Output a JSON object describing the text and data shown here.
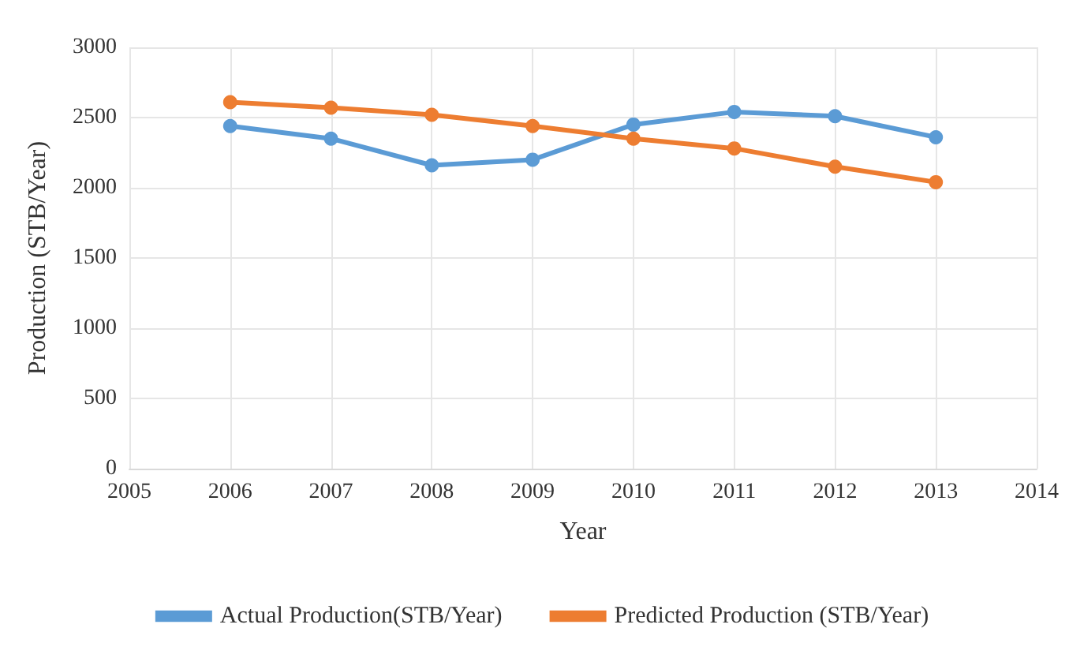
{
  "chart_data": {
    "type": "line",
    "xlabel": "Year",
    "ylabel": "Production (STB/Year)",
    "x": [
      2006,
      2007,
      2008,
      2009,
      2010,
      2011,
      2012,
      2013
    ],
    "series": [
      {
        "name": "Actual Production(STB/Year)",
        "color": "#5b9bd5",
        "values": [
          2440,
          2350,
          2160,
          2200,
          2450,
          2540,
          2510,
          2360
        ]
      },
      {
        "name": "Predicted Production (STB/Year)",
        "color": "#ed7d31",
        "values": [
          2610,
          2570,
          2520,
          2440,
          2350,
          2280,
          2150,
          2040
        ]
      }
    ],
    "xlim": [
      2005,
      2014
    ],
    "xticks": [
      2005,
      2006,
      2007,
      2008,
      2009,
      2010,
      2011,
      2012,
      2013,
      2014
    ],
    "ylim": [
      0,
      3000
    ],
    "yticks": [
      0,
      500,
      1000,
      1500,
      2000,
      2500,
      3000
    ],
    "grid": true,
    "legend": "bottom",
    "marker": "circle",
    "line_style": "solid"
  }
}
